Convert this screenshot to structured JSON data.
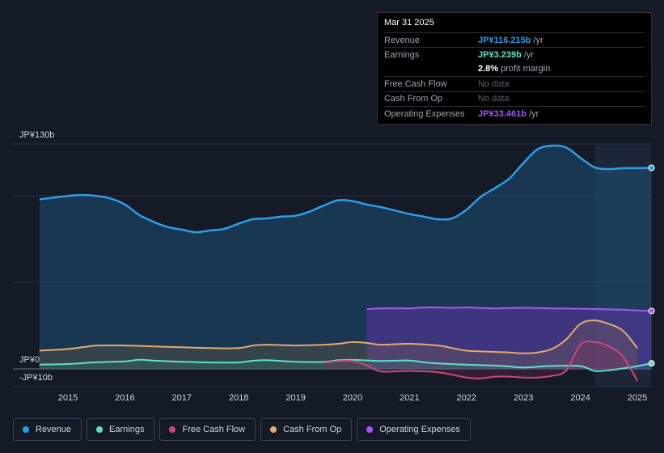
{
  "tooltip": {
    "date": "Mar 31 2025",
    "rows": [
      {
        "label": "Revenue",
        "value": "JP¥116.215b",
        "unit": "/yr",
        "color": "#2b9ee8"
      },
      {
        "label": "Earnings",
        "value": "JP¥3.239b",
        "unit": "/yr",
        "color": "#5ee0c9"
      },
      {
        "label": "",
        "value": "2.8%",
        "unit": "profit margin",
        "color": "#ffffff"
      },
      {
        "label": "Free Cash Flow",
        "value": "No data",
        "unit": "",
        "color": ""
      },
      {
        "label": "Cash From Op",
        "value": "No data",
        "unit": "",
        "color": ""
      },
      {
        "label": "Operating Expenses",
        "value": "JP¥33.461b",
        "unit": "/yr",
        "color": "#a855f7"
      }
    ]
  },
  "legend": [
    {
      "label": "Revenue",
      "color": "#2b9ee8"
    },
    {
      "label": "Earnings",
      "color": "#5ee0c9"
    },
    {
      "label": "Free Cash Flow",
      "color": "#d0457b"
    },
    {
      "label": "Cash From Op",
      "color": "#e8a96a"
    },
    {
      "label": "Operating Expenses",
      "color": "#a855f7"
    }
  ],
  "chart_data": {
    "type": "area",
    "title": "",
    "xlabel": "",
    "ylabel": "",
    "ylim": [
      -10,
      130
    ],
    "y_tick_labels": [
      "JP¥130b",
      "JP¥0",
      "-JP¥10b"
    ],
    "x_tick_labels": [
      "2015",
      "2016",
      "2017",
      "2018",
      "2019",
      "2020",
      "2021",
      "2022",
      "2023",
      "2024",
      "2025"
    ],
    "forecast_start": 2024.25,
    "series": [
      {
        "name": "Revenue",
        "color": "#2b9ee8",
        "x": [
          2014.5,
          2014.75,
          2015.0,
          2015.25,
          2015.5,
          2015.75,
          2016.0,
          2016.25,
          2016.5,
          2016.75,
          2017.0,
          2017.25,
          2017.5,
          2017.75,
          2018.0,
          2018.25,
          2018.5,
          2018.75,
          2019.0,
          2019.25,
          2019.5,
          2019.75,
          2020.0,
          2020.25,
          2020.5,
          2020.75,
          2021.0,
          2021.25,
          2021.5,
          2021.75,
          2022.0,
          2022.25,
          2022.5,
          2022.75,
          2023.0,
          2023.25,
          2023.5,
          2023.75,
          2024.0,
          2024.25,
          2024.5,
          2024.75,
          2025.0,
          2025.25
        ],
        "values": [
          98,
          99,
          100,
          100.5,
          100,
          98.5,
          95,
          89,
          85,
          82,
          80.5,
          79,
          80,
          81,
          84,
          86.5,
          87,
          88,
          88.5,
          91,
          94.5,
          97.5,
          97,
          95,
          93.5,
          91.5,
          89.5,
          88,
          86.5,
          87,
          92,
          99.5,
          104.5,
          110,
          119,
          127,
          129,
          128,
          122,
          116.5,
          115.5,
          116,
          116,
          116.2
        ]
      },
      {
        "name": "Earnings",
        "color": "#5ee0c9",
        "x": [
          2014.5,
          2015.0,
          2015.5,
          2016.0,
          2016.25,
          2016.5,
          2017.0,
          2017.5,
          2018.0,
          2018.25,
          2018.5,
          2019.0,
          2019.5,
          2019.75,
          2020.0,
          2020.5,
          2021.0,
          2021.25,
          2021.5,
          2022.0,
          2022.5,
          2022.75,
          2023.0,
          2023.5,
          2024.0,
          2024.25,
          2024.5,
          2024.75,
          2025.0,
          2025.25
        ],
        "values": [
          2.5,
          2.8,
          3.8,
          4.3,
          5.3,
          4.8,
          4.1,
          3.7,
          3.7,
          4.7,
          5.0,
          4.1,
          4.0,
          5.0,
          5.2,
          4.6,
          4.8,
          3.8,
          3.2,
          2.4,
          1.9,
          1.4,
          0.8,
          1.7,
          1.6,
          -1.2,
          -0.8,
          0.3,
          1.6,
          3.2
        ]
      },
      {
        "name": "Free Cash Flow",
        "color": "#d0457b",
        "x": [
          2019.5,
          2019.75,
          2020.0,
          2020.25,
          2020.5,
          2021.0,
          2021.5,
          2022.0,
          2022.25,
          2022.5,
          2022.75,
          2023.0,
          2023.25,
          2023.5,
          2023.75,
          2024.0,
          2024.25,
          2024.5,
          2024.75,
          2025.0
        ],
        "values": [
          3.5,
          4.5,
          4.5,
          2,
          -1.5,
          -1.2,
          -2,
          -5,
          -5.5,
          -4.5,
          -4.5,
          -5,
          -5,
          -4,
          -1,
          14,
          15.5,
          13,
          7,
          -7
        ]
      },
      {
        "name": "Cash From Op",
        "color": "#e8a96a",
        "x": [
          2014.5,
          2015.0,
          2015.25,
          2015.5,
          2016.0,
          2016.5,
          2017.0,
          2017.5,
          2018.0,
          2018.25,
          2018.5,
          2019.0,
          2019.5,
          2019.75,
          2020.0,
          2020.25,
          2020.5,
          2021.0,
          2021.5,
          2021.75,
          2022.0,
          2022.5,
          2022.75,
          2023.0,
          2023.25,
          2023.5,
          2023.75,
          2024.0,
          2024.25,
          2024.5,
          2024.75,
          2025.0
        ],
        "values": [
          10.5,
          11.5,
          12.5,
          13.5,
          13.5,
          13,
          12.5,
          12,
          12,
          13.5,
          14,
          13.5,
          14,
          14.5,
          15.5,
          15,
          14,
          14.5,
          13.5,
          12,
          10.5,
          9.8,
          9.5,
          9,
          9.5,
          11.5,
          17,
          26,
          28,
          26,
          22,
          12
        ]
      },
      {
        "name": "Operating Expenses",
        "color": "#a855f7",
        "x": [
          2020.25,
          2020.5,
          2021.0,
          2021.25,
          2021.5,
          2021.75,
          2022.0,
          2022.5,
          2023.0,
          2023.5,
          2024.0,
          2024.5,
          2024.75,
          2025.0,
          2025.25
        ],
        "values": [
          34.5,
          35,
          35,
          35.5,
          35.5,
          35.3,
          35.5,
          35,
          35.3,
          35,
          34.8,
          34.4,
          34.2,
          33.8,
          33.5
        ]
      }
    ]
  }
}
